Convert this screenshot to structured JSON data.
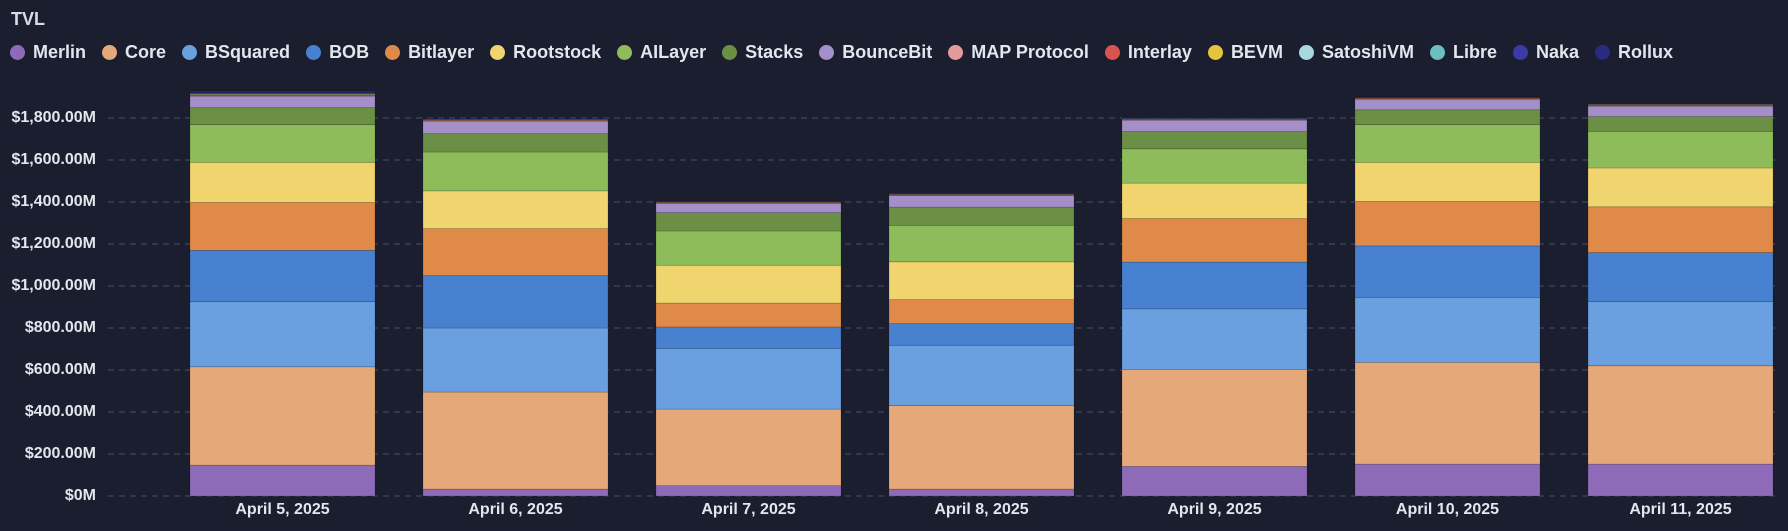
{
  "chart_data": {
    "type": "stacked_bar",
    "title": "TVL",
    "categories": [
      "April 5, 2025",
      "April 6, 2025",
      "April 7, 2025",
      "April 8, 2025",
      "April 9, 2025",
      "April 10, 2025",
      "April 11, 2025"
    ],
    "ylim": [
      0,
      2000
    ],
    "yticks": [
      {
        "value": 0,
        "label": "$0M"
      },
      {
        "value": 200,
        "label": "$200.00M"
      },
      {
        "value": 400,
        "label": "$400.00M"
      },
      {
        "value": 600,
        "label": "$600.00M"
      },
      {
        "value": 800,
        "label": "$800.00M"
      },
      {
        "value": 1000,
        "label": "$1,000.00M"
      },
      {
        "value": 1200,
        "label": "$1,200.00M"
      },
      {
        "value": 1400,
        "label": "$1,400.00M"
      },
      {
        "value": 1600,
        "label": "$1,600.00M"
      },
      {
        "value": 1800,
        "label": "$1,800.00M"
      }
    ],
    "grid": true,
    "series": [
      {
        "name": "Merlin",
        "color": "#8e6bb8",
        "values": [
          147,
          33,
          49,
          33,
          141,
          152,
          152
        ]
      },
      {
        "name": "Core",
        "color": "#e5a878",
        "values": [
          468,
          462,
          365,
          397,
          462,
          484,
          468
        ]
      },
      {
        "name": "BSquared",
        "color": "#6a9fe0",
        "values": [
          310,
          305,
          288,
          288,
          288,
          310,
          305
        ]
      },
      {
        "name": "BOB",
        "color": "#4781d0",
        "values": [
          245,
          250,
          103,
          103,
          223,
          245,
          234
        ]
      },
      {
        "name": "Bitlayer",
        "color": "#df8a48",
        "values": [
          228,
          223,
          114,
          114,
          207,
          212,
          218
        ]
      },
      {
        "name": "Rootstock",
        "color": "#f0d46e",
        "values": [
          190,
          180,
          180,
          180,
          169,
          185,
          185
        ]
      },
      {
        "name": "AILayer",
        "color": "#8fbc5a",
        "values": [
          180,
          185,
          163,
          174,
          163,
          180,
          174
        ]
      },
      {
        "name": "Stacks",
        "color": "#6a8f45",
        "values": [
          82,
          87,
          87,
          87,
          82,
          71,
          71
        ]
      },
      {
        "name": "BounceBit",
        "color": "#a58fc8",
        "values": [
          54,
          60,
          44,
          54,
          54,
          49,
          49
        ]
      },
      {
        "name": "MAP Protocol",
        "color": "#e59a9a",
        "values": [
          3,
          3,
          2,
          3,
          3,
          3,
          3
        ]
      },
      {
        "name": "Interlay",
        "color": "#d9534f",
        "values": [
          2,
          2,
          2,
          2,
          2,
          2,
          3
        ]
      },
      {
        "name": "BEVM",
        "color": "#e8c23a",
        "values": [
          3,
          2,
          2,
          2,
          2,
          2,
          2
        ]
      },
      {
        "name": "SatoshiVM",
        "color": "#a8d8e0",
        "values": [
          2,
          1,
          1,
          1,
          1,
          1,
          1
        ]
      },
      {
        "name": "Libre",
        "color": "#6cbfc0",
        "values": [
          2,
          1,
          1,
          1,
          1,
          1,
          1
        ]
      },
      {
        "name": "Naka",
        "color": "#3b3ba8",
        "values": [
          4,
          2,
          2,
          3,
          2,
          2,
          2
        ]
      },
      {
        "name": "Rollux",
        "color": "#2a2a80",
        "values": [
          8,
          2,
          2,
          3,
          2,
          2,
          2
        ]
      }
    ]
  }
}
